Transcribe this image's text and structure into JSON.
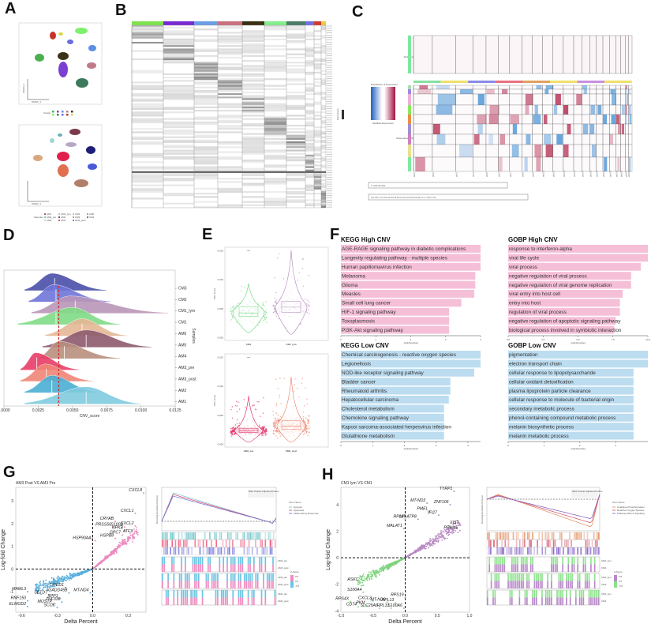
{
  "panels": {
    "A": "A",
    "B": "B",
    "C": "C",
    "D": "D",
    "E": "E",
    "F": "F",
    "G": "G",
    "H": "H"
  },
  "panel_a": {
    "umap_top": {
      "clusters": [
        {
          "color": "#4caf50"
        },
        {
          "color": "#7b3fd1"
        },
        {
          "color": "#5b8fe0"
        },
        {
          "color": "#c07a88"
        },
        {
          "color": "#3b3418"
        },
        {
          "color": "#7ff06e"
        },
        {
          "color": "#3c7a5b"
        },
        {
          "color": "#6b6be0"
        },
        {
          "color": "#c8322b"
        },
        {
          "color": "#d8d84a"
        }
      ],
      "legend_label": "Cluster",
      "xlabel": "UMAP_1",
      "ylabel": "UMAP_2"
    },
    "umap_bottom": {
      "legend_label": "Samples",
      "samples": [
        "AM1",
        "AM3_pre",
        "AM5",
        "CM1_lym",
        "AM2",
        "AM4",
        "CM1",
        "CM3",
        "AM3_post",
        "AM6",
        "CM2"
      ],
      "xlabel": "UMAP_1",
      "ylabel": "UMAP_2"
    }
  },
  "panel_b": {
    "column_colors": [
      "#7de24e",
      "#7a2ad1",
      "#6a9ee6",
      "#c9707e",
      "#3a2f12",
      "#83ee8a",
      "#4a7d67",
      "#6f6fe6",
      "#d03a2e",
      "#e6cf3b"
    ],
    "legend_label": "Expression"
  },
  "panel_c": {
    "references_label": "References (16002 Cells)",
    "observations_label": "Observations (59022 Cells)",
    "colorbar_title": "Distribution of Expression",
    "colorbar_xlabel": "Modified Expression",
    "chromosomes": [
      "chr1",
      "chr2",
      "chr3",
      "chr4",
      "chr5",
      "chr6",
      "chr7",
      "chr8",
      "chr9",
      "chr10",
      "chr11",
      "chr12",
      "chr13",
      "chr14",
      "chr15",
      "chr16",
      "chr17",
      "chr18",
      "chr19",
      "chr20",
      "chr21",
      "chr22"
    ],
    "legend_row1": "T cells  B cells",
    "legend_row2": "C4 C5 C C1 M C2 M C3 M C4 C3 C3 C5 C6 M C7 C C8 C C9"
  },
  "chart_data": [
    {
      "id": "D",
      "type": "area",
      "subtype": "ridgeline",
      "xlabel": "CNV_score",
      "ylabel": "Samples",
      "xlim": [
        0.0,
        0.0125
      ],
      "xticks": [
        "0.0000",
        "0.0025",
        "0.0050",
        "0.0075",
        "0.0100",
        "0.0125"
      ],
      "reference_line": 0.004,
      "series": [
        {
          "name": "CM3",
          "median": 0.0037,
          "peak": 0.0035,
          "min": 0.0015,
          "max": 0.0075,
          "color": "#4a4fa8"
        },
        {
          "name": "CM2",
          "median": 0.0038,
          "peak": 0.0036,
          "min": 0.0018,
          "max": 0.0078,
          "color": "#6f76d8"
        },
        {
          "name": "CM1_lym",
          "median": 0.0052,
          "peak": 0.0048,
          "min": 0.002,
          "max": 0.012,
          "color": "#b996b8"
        },
        {
          "name": "CM1",
          "median": 0.0038,
          "peak": 0.005,
          "min": 0.001,
          "max": 0.0085,
          "color": "#7fdc86"
        },
        {
          "name": "AM6",
          "median": 0.0057,
          "peak": 0.0057,
          "min": 0.003,
          "max": 0.009,
          "color": "#e4b795"
        },
        {
          "name": "AM5",
          "median": 0.006,
          "peak": 0.006,
          "min": 0.0028,
          "max": 0.0108,
          "color": "#8e5a6e"
        },
        {
          "name": "AM4",
          "median": 0.0044,
          "peak": 0.004,
          "min": 0.0025,
          "max": 0.0085,
          "color": "#b88f7e"
        },
        {
          "name": "AM3_pre",
          "median": 0.0024,
          "peak": 0.0023,
          "min": 0.0012,
          "max": 0.0055,
          "color": "#e83d66"
        },
        {
          "name": "AM3_post",
          "median": 0.0031,
          "peak": 0.003,
          "min": 0.0012,
          "max": 0.0065,
          "color": "#ef8575"
        },
        {
          "name": "AM2",
          "median": 0.0035,
          "peak": 0.0035,
          "min": 0.0015,
          "max": 0.007,
          "color": "#4aaed4"
        },
        {
          "name": "AM1",
          "median": 0.006,
          "peak": 0.006,
          "min": 0.0015,
          "max": 0.01,
          "color": "#7fcbdf"
        }
      ]
    },
    {
      "id": "E_top",
      "type": "scatter",
      "subtype": "violin-box",
      "ylabel": "CNV score",
      "ylim": [
        0.0,
        0.015
      ],
      "yticks": [
        "0.000",
        "0.005",
        "0.010",
        "0.015"
      ],
      "significance": "****",
      "categories": [
        "CM1",
        "CM1_lym"
      ],
      "series": [
        {
          "name": "CM1",
          "q1": 0.0036,
          "median": 0.0042,
          "q3": 0.0053,
          "min": 0.0008,
          "max": 0.0093,
          "color": "#6bd37a"
        },
        {
          "name": "CM1_lym",
          "q1": 0.0043,
          "median": 0.0052,
          "q3": 0.0062,
          "min": 0.0005,
          "max": 0.015,
          "color": "#b085b8"
        }
      ]
    },
    {
      "id": "E_bottom",
      "type": "scatter",
      "subtype": "violin-box",
      "ylabel": "CNV score",
      "ylim": [
        0.0,
        0.015
      ],
      "yticks": [
        "0.000",
        "0.005",
        "0.010",
        "0.015"
      ],
      "significance": "****",
      "categories": [
        "AM3_pre",
        "AM3_post"
      ],
      "series": [
        {
          "name": "AM3_pre",
          "q1": 0.002,
          "median": 0.0023,
          "q3": 0.0027,
          "min": 0.0003,
          "max": 0.0083,
          "color": "#e0205a"
        },
        {
          "name": "AM3_post",
          "q1": 0.0025,
          "median": 0.0031,
          "q3": 0.004,
          "min": 0.0003,
          "max": 0.0116,
          "color": "#ee7c66"
        }
      ]
    },
    {
      "id": "F_kegg_high",
      "type": "bar",
      "orientation": "horizontal",
      "title": "KEGG High CNV",
      "xlabel": "-log10(pvalue)",
      "xlim": [
        0,
        4
      ],
      "xticks": [
        "0",
        "1",
        "2",
        "3",
        "4"
      ],
      "color": "#f5bfd8",
      "categories": [
        "AGE-RAGE signaling pathway in diabetic complications",
        "Longevity regulating pathway - multiple species",
        "Human papillomavirus infection",
        "Melanoma",
        "Glioma",
        "Measles",
        "Small cell lung cancer",
        "HIF-1 signaling pathway",
        "Toxoplasmosis",
        "PI3K-Akt signaling pathway"
      ],
      "values": [
        4.0,
        4.0,
        4.0,
        3.85,
        3.85,
        3.82,
        3.45,
        3.1,
        3.1,
        3.1
      ]
    },
    {
      "id": "F_gobp_high",
      "type": "bar",
      "orientation": "horizontal",
      "title": "GOBP High CNV",
      "xlabel": "-log10(pvalue)",
      "xlim": [
        0,
        10
      ],
      "xticks": [
        "0.0",
        "2.5",
        "5.0",
        "7.5",
        "10.0"
      ],
      "color": "#f5bfd8",
      "categories": [
        "response to interferon-alpha",
        "viral life cycle",
        "viral process",
        "negative regulation of viral process",
        "negative regulation of viral genome replication",
        "viral entry into host cell",
        "entry into host",
        "regulation of viral process",
        "negative regulation of apoptotic signaling pathway",
        "biological process involved in symbiotic interaction"
      ],
      "values": [
        10.0,
        10.0,
        9.5,
        8.8,
        8.8,
        8.2,
        8.0,
        8.0,
        7.7,
        7.6
      ]
    },
    {
      "id": "F_kegg_low",
      "type": "bar",
      "orientation": "horizontal",
      "title": "KEGG Low CNV",
      "xlabel": "-log10(pvalue)",
      "xlim": [
        0,
        4.4
      ],
      "xticks": [
        "0",
        "1",
        "2",
        "3",
        "4"
      ],
      "color": "#bcdcf0",
      "categories": [
        "Chemical carcinogenesis - reactive oxygen species",
        "Legionellosis",
        "NOD-like receptor signaling pathway",
        "Bladder cancer",
        "Rheumatoid arthritis",
        "Hepatocellular carcinoma",
        "Cholesterol metabolism",
        "Chemokine signaling pathway",
        "Kaposi sarcoma-associated herpesvirus infection",
        "Glutathione metabolism"
      ],
      "values": [
        4.4,
        4.4,
        4.2,
        3.45,
        3.45,
        3.4,
        3.25,
        3.25,
        3.25,
        3.25
      ]
    },
    {
      "id": "F_gobp_low",
      "type": "bar",
      "orientation": "horizontal",
      "title": "GOBP Low CNV",
      "xlabel": "-log10(pvalue)",
      "xlim": [
        0,
        3.9
      ],
      "xticks": [
        "0",
        "1",
        "2",
        "3"
      ],
      "color": "#bcdcf0",
      "categories": [
        "pigmentation",
        "electron transport chain",
        "cellular response to lipopolysaccharide",
        "cellular oxidant detoxification",
        "plasma lipoprotein particle clearance",
        "cellular response to molecule of bacterial origin",
        "secondary metabolic process",
        "phenol-containing compound metabolic process",
        "melanin biosynthetic process",
        "melanin metabolic process"
      ],
      "values": [
        3.9,
        3.9,
        3.5,
        3.5,
        3.5,
        3.5,
        3.5,
        3.5,
        3.5,
        3.5
      ]
    },
    {
      "id": "G_volcano",
      "type": "scatter",
      "title": "AM3 Post VS AM3 Pre",
      "xlabel": "Delta Percent",
      "ylabel": "Log-fold Change",
      "xlim": [
        -0.65,
        0.45
      ],
      "ylim": [
        -1.9,
        3.6
      ],
      "xticks": [
        -0.6,
        -0.3,
        0.0,
        0.3
      ],
      "yticks": [
        -1,
        0,
        1,
        2,
        3
      ],
      "up_color": "#e98bc0",
      "down_color": "#5aaedb",
      "labeled_points": [
        {
          "gene": "CXCL8",
          "x": 0.43,
          "y": 3.35
        },
        {
          "gene": "CXCL1",
          "x": 0.36,
          "y": 2.45
        },
        {
          "gene": "CRYAB",
          "x": 0.19,
          "y": 2.1
        },
        {
          "gene": "PRSS56",
          "x": 0.17,
          "y": 1.85
        },
        {
          "gene": "S100B",
          "x": 0.27,
          "y": 1.85
        },
        {
          "gene": "CXCL2",
          "x": 0.36,
          "y": 1.9
        },
        {
          "gene": "NPKB",
          "x": 0.27,
          "y": 1.7
        },
        {
          "gene": "ATF3",
          "x": 0.35,
          "y": 1.55
        },
        {
          "gene": "GPC7",
          "x": 0.25,
          "y": 1.5
        },
        {
          "gene": "HSPB8",
          "x": 0.19,
          "y": 1.35
        },
        {
          "gene": "HSP90AA1",
          "x": 0.02,
          "y": 1.25
        },
        {
          "gene": "CITED1",
          "x": -0.23,
          "y": -0.82
        },
        {
          "gene": "GADD45B",
          "x": -0.2,
          "y": -1.05
        },
        {
          "gene": "MT-ND4",
          "x": -0.02,
          "y": -1.05
        },
        {
          "gene": "MAML3",
          "x": -0.55,
          "y": -1.0
        },
        {
          "gene": "SETD7",
          "x": -0.37,
          "y": -1.15
        },
        {
          "gene": "RNF150",
          "x": -0.55,
          "y": -1.4
        },
        {
          "gene": "SPP1",
          "x": -0.28,
          "y": -1.3
        },
        {
          "gene": "ZNF330",
          "x": -0.26,
          "y": -1.45
        },
        {
          "gene": "MOSTP",
          "x": -0.33,
          "y": -1.55
        },
        {
          "gene": "SCOC",
          "x": -0.3,
          "y": -1.7
        },
        {
          "gene": "ELMOD2",
          "x": -0.55,
          "y": -1.65
        }
      ]
    },
    {
      "id": "G_gsea",
      "type": "line",
      "ylabel": "Running Enrichment Score",
      "legend_title": "Term Name",
      "series": [
        {
          "name": "Hypoxia",
          "color": "#6bc3c8",
          "peak": 0.72
        },
        {
          "name": "Apoptosis",
          "color": "#e83d66",
          "peak": 0.78
        },
        {
          "name": "Inflammatory Response",
          "color": "#6f6fd8",
          "peak": 0.74
        }
      ],
      "table_headers": [
        "NES",
        "Pvalue",
        "Adjusted Pvalue"
      ],
      "heatmap_rows": [
        "AM3_pre",
        "AM3_post"
      ],
      "zscore_legend_title": "Z-Score",
      "zscore_ticks": [
        "0.5",
        "0.0",
        "-0.5"
      ]
    },
    {
      "id": "H_volcano",
      "type": "scatter",
      "title": "CM1 lym VS CM1",
      "xlabel": "Delta Percent",
      "ylabel": "Log-fold Change",
      "xlim": [
        -1.0,
        1.0
      ],
      "ylim": [
        -4.1,
        5.3
      ],
      "xticks": [
        -1.0,
        -0.5,
        0.0,
        0.5,
        1.0
      ],
      "yticks": [
        -4,
        -2,
        0,
        2,
        4
      ],
      "up_color": "#b98ac4",
      "down_color": "#7fd47f",
      "labeled_points": [
        {
          "gene": "TYRP1",
          "x": 0.76,
          "y": 5.0
        },
        {
          "gene": "MT-ND3",
          "x": 0.34,
          "y": 4.1
        },
        {
          "gene": "ZNF106",
          "x": 0.7,
          "y": 4.0
        },
        {
          "gene": "PMEL",
          "x": 0.38,
          "y": 3.5
        },
        {
          "gene": "IFI27",
          "x": 0.52,
          "y": 3.2
        },
        {
          "gene": "RPL9",
          "x": 0.0,
          "y": 2.9
        },
        {
          "gene": "MT-ATP8",
          "x": 0.2,
          "y": 2.9
        },
        {
          "gene": "XIST",
          "x": 0.86,
          "y": 2.45
        },
        {
          "gene": "MALAT1",
          "x": -0.02,
          "y": 2.2
        },
        {
          "gene": "PRAME",
          "x": 0.85,
          "y": 2.05
        },
        {
          "gene": "ASKC",
          "x": -0.7,
          "y": -1.85
        },
        {
          "gene": "S100A4",
          "x": -0.65,
          "y": -2.6
        },
        {
          "gene": "RPS19",
          "x": 0.0,
          "y": -3.0
        },
        {
          "gene": "RPS4X",
          "x": -0.85,
          "y": -3.3
        },
        {
          "gene": "CD74",
          "x": -0.73,
          "y": -3.7
        },
        {
          "gene": "CXCL3",
          "x": -0.5,
          "y": -3.25
        },
        {
          "gene": "PKM",
          "x": -0.6,
          "y": -3.6
        },
        {
          "gene": "MT-ND6",
          "x": -0.28,
          "y": -3.35
        },
        {
          "gene": "RPL13",
          "x": -0.15,
          "y": -3.4
        },
        {
          "gene": "SLC25A6",
          "x": -0.4,
          "y": -3.8
        },
        {
          "gene": "RPL31",
          "x": -0.22,
          "y": -3.8
        },
        {
          "gene": "S100A6",
          "x": -0.02,
          "y": -3.8
        }
      ]
    },
    {
      "id": "H_gsea",
      "type": "line",
      "ylabel": "Running Enrichment Score",
      "legend_title": "Term Name",
      "series": [
        {
          "name": "Oxidative Phosphorylation",
          "color": "#e08a5a",
          "trough": -0.55
        },
        {
          "name": "Reactive Oxygen Species",
          "color": "#d04a60",
          "trough": -0.6
        },
        {
          "name": "Pathway Mtorc1 Signaling",
          "color": "#7b55c0",
          "trough": -0.45
        }
      ],
      "table_headers": [
        "NES",
        "Pvalue",
        "Adjusted Pvalue"
      ],
      "heatmap_rows": [
        "CM1_lym",
        "CM1"
      ],
      "zscore_legend_title": "Z-Score",
      "zscore_ticks": [
        "0.5",
        "0.0",
        "-0.5"
      ]
    }
  ]
}
